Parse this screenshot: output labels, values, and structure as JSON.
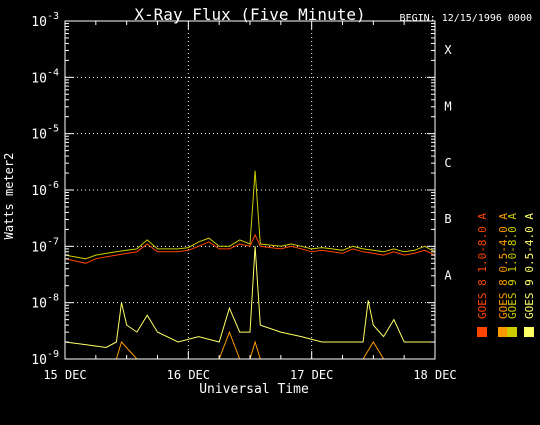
{
  "chart_data": {
    "type": "line",
    "title": "X-Ray Flux (Five Minute)",
    "begin_label": "BEGIN: 12/15/1996 0000",
    "xlabel": "Universal Time",
    "ylabel": "Watts meter2",
    "ylim": [
      1e-09,
      0.001
    ],
    "yscale": "log",
    "y_ticks": [
      {
        "value": 1e-09,
        "base": "10",
        "exp": "-9"
      },
      {
        "value": 1e-08,
        "base": "10",
        "exp": "-8"
      },
      {
        "value": 1e-07,
        "base": "10",
        "exp": "-7"
      },
      {
        "value": 1e-06,
        "base": "10",
        "exp": "-6"
      },
      {
        "value": 1e-05,
        "base": "10",
        "exp": "-5"
      },
      {
        "value": 0.0001,
        "base": "10",
        "exp": "-4"
      },
      {
        "value": 0.001,
        "base": "10",
        "exp": "-3"
      }
    ],
    "x_ticks": [
      "15 DEC",
      "16 DEC",
      "17 DEC",
      "18 DEC"
    ],
    "xlim": [
      "1996-12-15",
      "1996-12-18"
    ],
    "flare_classes": [
      {
        "label": "A",
        "value": 1e-08
      },
      {
        "label": "B",
        "value": 1e-07
      },
      {
        "label": "C",
        "value": 1e-06
      },
      {
        "label": "M",
        "value": 1e-05
      },
      {
        "label": "X",
        "value": 0.0001
      }
    ],
    "grid": true,
    "legend_placement": "right-vertical",
    "series": [
      {
        "name": "GOES 8 1.0-8.0 A",
        "color": "#ff4400",
        "x": [
          "12-15 00:00",
          "12-15 02:00",
          "12-15 04:00",
          "12-15 06:00",
          "12-15 08:00",
          "12-15 10:00",
          "12-15 12:00",
          "12-15 14:00",
          "12-15 16:00",
          "12-15 18:00",
          "12-15 20:00",
          "12-15 22:00",
          "12-16 00:00",
          "12-16 02:00",
          "12-16 04:00",
          "12-16 06:00",
          "12-16 08:00",
          "12-16 10:00",
          "12-16 12:00",
          "12-16 13:00",
          "12-16 14:00",
          "12-16 16:00",
          "12-16 18:00",
          "12-16 20:00",
          "12-16 22:00",
          "12-17 00:00",
          "12-17 02:00",
          "12-17 04:00",
          "12-17 06:00",
          "12-17 08:00",
          "12-17 10:00",
          "12-17 12:00",
          "12-17 14:00",
          "12-17 16:00",
          "12-17 18:00",
          "12-17 20:00",
          "12-17 22:00",
          "12-18 00:00"
        ],
        "values": [
          6e-08,
          5.5e-08,
          5e-08,
          6e-08,
          6.5e-08,
          7e-08,
          7.5e-08,
          8e-08,
          1.1e-07,
          8e-08,
          8e-08,
          8e-08,
          8.5e-08,
          1e-07,
          1.2e-07,
          9e-08,
          9e-08,
          1.1e-07,
          1e-07,
          1.6e-07,
          1e-07,
          9.5e-08,
          9e-08,
          1e-07,
          9e-08,
          8e-08,
          8.5e-08,
          8e-08,
          7.5e-08,
          9e-08,
          8e-08,
          7.5e-08,
          7e-08,
          8e-08,
          7e-08,
          7.5e-08,
          8.5e-08,
          7e-08
        ]
      },
      {
        "name": "GOES 8 0.5-4.0 A",
        "color": "#ff9900",
        "x": [
          "12-15 00:00",
          "12-15 04:00",
          "12-15 08:00",
          "12-15 10:00",
          "12-15 11:00",
          "12-15 14:00",
          "12-15 18:00",
          "12-15 22:00",
          "12-16 02:00",
          "12-16 06:00",
          "12-16 08:00",
          "12-16 10:00",
          "12-16 12:00",
          "12-16 13:00",
          "12-16 14:00",
          "12-16 18:00",
          "12-16 22:00",
          "12-17 02:00",
          "12-17 06:00",
          "12-17 10:00",
          "12-17 12:00",
          "12-17 14:00",
          "12-17 18:00",
          "12-17 22:00",
          "12-18 00:00"
        ],
        "values": [
          1e-09,
          1e-09,
          1e-09,
          1e-09,
          2e-09,
          1e-09,
          1e-09,
          1e-09,
          1e-09,
          1e-09,
          3e-09,
          1e-09,
          1e-09,
          2e-09,
          1e-09,
          1e-09,
          1e-09,
          1e-09,
          1e-09,
          1e-09,
          2e-09,
          1e-09,
          1e-09,
          1e-09,
          1e-09
        ]
      },
      {
        "name": "GOES 9 1.0-8.0 A",
        "color": "#cccc00",
        "x": [
          "12-15 00:00",
          "12-15 02:00",
          "12-15 04:00",
          "12-15 06:00",
          "12-15 08:00",
          "12-15 10:00",
          "12-15 12:00",
          "12-15 14:00",
          "12-15 16:00",
          "12-15 18:00",
          "12-15 20:00",
          "12-15 22:00",
          "12-16 00:00",
          "12-16 02:00",
          "12-16 04:00",
          "12-16 06:00",
          "12-16 08:00",
          "12-16 10:00",
          "12-16 12:00",
          "12-16 13:00",
          "12-16 14:00",
          "12-16 16:00",
          "12-16 18:00",
          "12-16 20:00",
          "12-16 22:00",
          "12-17 00:00",
          "12-17 02:00",
          "12-17 04:00",
          "12-17 06:00",
          "12-17 08:00",
          "12-17 10:00",
          "12-17 12:00",
          "12-17 14:00",
          "12-17 16:00",
          "12-17 18:00",
          "12-17 20:00",
          "12-17 22:00",
          "12-18 00:00"
        ],
        "values": [
          7e-08,
          6.5e-08,
          6e-08,
          7e-08,
          7.5e-08,
          8e-08,
          8.5e-08,
          9e-08,
          1.3e-07,
          9e-08,
          9e-08,
          9e-08,
          9.5e-08,
          1.2e-07,
          1.4e-07,
          1e-07,
          1e-07,
          1.3e-07,
          1.1e-07,
          2.2e-06,
          1.1e-07,
          1.05e-07,
          1e-07,
          1.1e-07,
          1e-07,
          9e-08,
          9.5e-08,
          9e-08,
          8.5e-08,
          1e-07,
          9e-08,
          8.5e-08,
          8e-08,
          9e-08,
          8e-08,
          8.5e-08,
          1e-07,
          8e-08
        ]
      },
      {
        "name": "GOES 9 0.5-4.0 A",
        "color": "#ffff66",
        "x": [
          "12-15 00:00",
          "12-15 04:00",
          "12-15 08:00",
          "12-15 10:00",
          "12-15 11:00",
          "12-15 12:00",
          "12-15 14:00",
          "12-15 16:00",
          "12-15 18:00",
          "12-15 22:00",
          "12-16 02:00",
          "12-16 06:00",
          "12-16 08:00",
          "12-16 10:00",
          "12-16 12:00",
          "12-16 13:00",
          "12-16 14:00",
          "12-16 18:00",
          "12-16 22:00",
          "12-17 02:00",
          "12-17 06:00",
          "12-17 10:00",
          "12-17 11:00",
          "12-17 12:00",
          "12-17 14:00",
          "12-17 16:00",
          "12-17 18:00",
          "12-17 22:00",
          "12-18 00:00"
        ],
        "values": [
          2e-09,
          1.8e-09,
          1.6e-09,
          2e-09,
          1e-08,
          4e-09,
          3e-09,
          6e-09,
          3e-09,
          2e-09,
          2.5e-09,
          2e-09,
          8e-09,
          3e-09,
          3e-09,
          1e-07,
          4e-09,
          3e-09,
          2.5e-09,
          2e-09,
          2e-09,
          2e-09,
          1.1e-08,
          4e-09,
          2.5e-09,
          5e-09,
          2e-09,
          2e-09,
          2e-09
        ]
      }
    ]
  }
}
